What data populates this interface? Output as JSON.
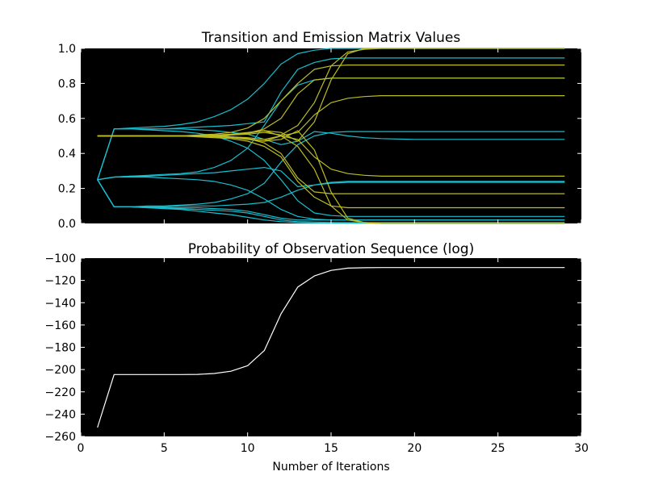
{
  "colors": {
    "plot_bg": "#000000",
    "cyan": "#17becf",
    "yellow": "#bcbd22",
    "white": "#ffffff"
  },
  "chart_data": [
    {
      "type": "line",
      "title": "Transition and Emission Matrix Values",
      "xlabel": "",
      "ylabel": "",
      "xlim": [
        0,
        30
      ],
      "ylim": [
        0.0,
        1.0
      ],
      "x_ticks_visible": false,
      "y_ticks": [
        "0.0",
        "0.2",
        "0.4",
        "0.6",
        "0.8",
        "1.0"
      ],
      "grid": false,
      "x": [
        1,
        2,
        3,
        4,
        5,
        6,
        7,
        8,
        9,
        10,
        11,
        12,
        13,
        14,
        15,
        16,
        17,
        18,
        19,
        20,
        21,
        22,
        23,
        24,
        25,
        26,
        27,
        28,
        29
      ],
      "series": [
        {
          "color": "cyan",
          "values": [
            0.25,
            0.54,
            0.545,
            0.55,
            0.555,
            0.565,
            0.58,
            0.61,
            0.65,
            0.71,
            0.8,
            0.91,
            0.97,
            0.99,
            1.0,
            1.0,
            1.0,
            1.0,
            1.0,
            1.0,
            1.0,
            1.0,
            1.0,
            1.0,
            1.0,
            1.0,
            1.0,
            1.0,
            1.0
          ]
        },
        {
          "color": "cyan",
          "values": [
            0.25,
            0.54,
            0.54,
            0.54,
            0.54,
            0.545,
            0.55,
            0.555,
            0.56,
            0.57,
            0.58,
            0.75,
            0.88,
            0.92,
            0.94,
            0.945,
            0.945,
            0.945,
            0.945,
            0.945,
            0.945,
            0.945,
            0.945,
            0.945,
            0.945,
            0.945,
            0.945,
            0.945,
            0.945
          ]
        },
        {
          "color": "cyan",
          "values": [
            0.25,
            0.54,
            0.54,
            0.54,
            0.54,
            0.54,
            0.535,
            0.53,
            0.52,
            0.51,
            0.48,
            0.45,
            0.47,
            0.525,
            0.515,
            0.5,
            0.49,
            0.485,
            0.482,
            0.48,
            0.48,
            0.48,
            0.48,
            0.48,
            0.48,
            0.48,
            0.48,
            0.48,
            0.48
          ]
        },
        {
          "color": "cyan",
          "values": [
            0.25,
            0.54,
            0.54,
            0.535,
            0.53,
            0.525,
            0.515,
            0.5,
            0.47,
            0.43,
            0.36,
            0.25,
            0.13,
            0.06,
            0.045,
            0.04,
            0.04,
            0.04,
            0.04,
            0.04,
            0.04,
            0.04,
            0.04,
            0.04,
            0.04,
            0.04,
            0.04,
            0.04,
            0.04
          ]
        },
        {
          "color": "cyan",
          "values": [
            0.25,
            0.265,
            0.27,
            0.275,
            0.28,
            0.285,
            0.295,
            0.32,
            0.36,
            0.43,
            0.56,
            0.7,
            0.79,
            0.82,
            0.83,
            0.83,
            0.83,
            0.83,
            0.83,
            0.83,
            0.83,
            0.83,
            0.83,
            0.83,
            0.83,
            0.83,
            0.83,
            0.83,
            0.83
          ]
        },
        {
          "color": "cyan",
          "values": [
            0.25,
            0.265,
            0.27,
            0.27,
            0.275,
            0.28,
            0.285,
            0.29,
            0.3,
            0.31,
            0.32,
            0.3,
            0.21,
            0.22,
            0.235,
            0.24,
            0.24,
            0.24,
            0.24,
            0.24,
            0.24,
            0.24,
            0.24,
            0.24,
            0.24,
            0.24,
            0.24,
            0.24,
            0.24
          ]
        },
        {
          "color": "cyan",
          "values": [
            0.25,
            0.265,
            0.265,
            0.265,
            0.26,
            0.255,
            0.25,
            0.24,
            0.22,
            0.19,
            0.14,
            0.08,
            0.04,
            0.025,
            0.02,
            0.02,
            0.02,
            0.02,
            0.02,
            0.02,
            0.02,
            0.02,
            0.02,
            0.02,
            0.02,
            0.02,
            0.02,
            0.02,
            0.02
          ]
        },
        {
          "color": "cyan",
          "values": [
            0.25,
            0.095,
            0.095,
            0.1,
            0.1,
            0.105,
            0.11,
            0.12,
            0.14,
            0.17,
            0.23,
            0.35,
            0.45,
            0.5,
            0.52,
            0.525,
            0.525,
            0.525,
            0.525,
            0.525,
            0.525,
            0.525,
            0.525,
            0.525,
            0.525,
            0.525,
            0.525,
            0.525,
            0.525
          ]
        },
        {
          "color": "cyan",
          "values": [
            0.25,
            0.095,
            0.095,
            0.095,
            0.095,
            0.1,
            0.1,
            0.1,
            0.105,
            0.11,
            0.12,
            0.15,
            0.19,
            0.22,
            0.23,
            0.235,
            0.235,
            0.235,
            0.235,
            0.235,
            0.235,
            0.235,
            0.235,
            0.235,
            0.235,
            0.235,
            0.235,
            0.235,
            0.235
          ]
        },
        {
          "color": "cyan",
          "values": [
            0.25,
            0.095,
            0.095,
            0.095,
            0.09,
            0.09,
            0.09,
            0.085,
            0.08,
            0.07,
            0.05,
            0.03,
            0.02,
            0.02,
            0.02,
            0.02,
            0.02,
            0.02,
            0.02,
            0.02,
            0.02,
            0.02,
            0.02,
            0.02,
            0.02,
            0.02,
            0.02,
            0.02,
            0.02
          ]
        },
        {
          "color": "cyan",
          "values": [
            0.25,
            0.095,
            0.095,
            0.09,
            0.09,
            0.085,
            0.08,
            0.075,
            0.07,
            0.06,
            0.04,
            0.02,
            0.01,
            0.008,
            0.006,
            0.005,
            0.005,
            0.005,
            0.005,
            0.005,
            0.005,
            0.005,
            0.005,
            0.005,
            0.005,
            0.005,
            0.005,
            0.005,
            0.005
          ]
        },
        {
          "color": "cyan",
          "values": [
            0.25,
            0.095,
            0.095,
            0.09,
            0.085,
            0.08,
            0.07,
            0.06,
            0.05,
            0.035,
            0.02,
            0.01,
            0.005,
            0.003,
            0.002,
            0.002,
            0.002,
            0.002,
            0.002,
            0.002,
            0.002,
            0.002,
            0.002,
            0.002,
            0.002,
            0.002,
            0.002,
            0.002,
            0.002
          ]
        },
        {
          "color": "yellow",
          "values": [
            0.5,
            0.5,
            0.5,
            0.5,
            0.5,
            0.5,
            0.505,
            0.51,
            0.52,
            0.545,
            0.6,
            0.7,
            0.8,
            0.88,
            0.9,
            0.905,
            0.905,
            0.905,
            0.905,
            0.905,
            0.905,
            0.905,
            0.905,
            0.905,
            0.905,
            0.905,
            0.905,
            0.905,
            0.905
          ]
        },
        {
          "color": "yellow",
          "values": [
            0.5,
            0.5,
            0.5,
            0.5,
            0.5,
            0.5,
            0.5,
            0.5,
            0.505,
            0.51,
            0.52,
            0.505,
            0.56,
            0.69,
            0.9,
            0.98,
            0.995,
            1.0,
            1.0,
            1.0,
            1.0,
            1.0,
            1.0,
            1.0,
            1.0,
            1.0,
            1.0,
            1.0,
            1.0
          ]
        },
        {
          "color": "yellow",
          "values": [
            0.5,
            0.5,
            0.5,
            0.5,
            0.5,
            0.5,
            0.5,
            0.505,
            0.51,
            0.52,
            0.53,
            0.52,
            0.47,
            0.58,
            0.82,
            0.97,
            1.0,
            1.0,
            1.0,
            1.0,
            1.0,
            1.0,
            1.0,
            1.0,
            1.0,
            1.0,
            1.0,
            1.0,
            1.0
          ]
        },
        {
          "color": "yellow",
          "values": [
            0.5,
            0.5,
            0.5,
            0.5,
            0.5,
            0.5,
            0.5,
            0.5,
            0.505,
            0.515,
            0.53,
            0.5,
            0.52,
            0.62,
            0.69,
            0.715,
            0.725,
            0.73,
            0.73,
            0.73,
            0.73,
            0.73,
            0.73,
            0.73,
            0.73,
            0.73,
            0.73,
            0.73,
            0.73
          ]
        },
        {
          "color": "yellow",
          "values": [
            0.5,
            0.5,
            0.5,
            0.5,
            0.5,
            0.5,
            0.5,
            0.5,
            0.505,
            0.515,
            0.54,
            0.6,
            0.74,
            0.82,
            0.83,
            0.83,
            0.83,
            0.83,
            0.83,
            0.83,
            0.83,
            0.83,
            0.83,
            0.83,
            0.83,
            0.83,
            0.83,
            0.83,
            0.83
          ]
        },
        {
          "color": "yellow",
          "values": [
            0.5,
            0.5,
            0.5,
            0.5,
            0.5,
            0.5,
            0.5,
            0.5,
            0.495,
            0.485,
            0.46,
            0.4,
            0.26,
            0.18,
            0.17,
            0.17,
            0.17,
            0.17,
            0.17,
            0.17,
            0.17,
            0.17,
            0.17,
            0.17,
            0.17,
            0.17,
            0.17,
            0.17,
            0.17
          ]
        },
        {
          "color": "yellow",
          "values": [
            0.5,
            0.5,
            0.5,
            0.5,
            0.5,
            0.5,
            0.5,
            0.5,
            0.495,
            0.49,
            0.48,
            0.5,
            0.44,
            0.31,
            0.1,
            0.02,
            0.005,
            0.0,
            0.0,
            0.0,
            0.0,
            0.0,
            0.0,
            0.0,
            0.0,
            0.0,
            0.0,
            0.0,
            0.0
          ]
        },
        {
          "color": "yellow",
          "values": [
            0.5,
            0.5,
            0.5,
            0.5,
            0.5,
            0.5,
            0.5,
            0.495,
            0.49,
            0.48,
            0.47,
            0.48,
            0.53,
            0.42,
            0.18,
            0.03,
            0.005,
            0.0,
            0.0,
            0.0,
            0.0,
            0.0,
            0.0,
            0.0,
            0.0,
            0.0,
            0.0,
            0.0,
            0.0
          ]
        },
        {
          "color": "yellow",
          "values": [
            0.5,
            0.5,
            0.5,
            0.5,
            0.5,
            0.5,
            0.5,
            0.5,
            0.495,
            0.485,
            0.47,
            0.5,
            0.48,
            0.38,
            0.31,
            0.285,
            0.275,
            0.27,
            0.27,
            0.27,
            0.27,
            0.27,
            0.27,
            0.27,
            0.27,
            0.27,
            0.27,
            0.27,
            0.27
          ]
        },
        {
          "color": "yellow",
          "values": [
            0.5,
            0.5,
            0.5,
            0.5,
            0.5,
            0.5,
            0.495,
            0.49,
            0.485,
            0.47,
            0.44,
            0.38,
            0.24,
            0.15,
            0.1,
            0.09,
            0.09,
            0.09,
            0.09,
            0.09,
            0.09,
            0.09,
            0.09,
            0.09,
            0.09,
            0.09,
            0.09,
            0.09,
            0.09
          ]
        }
      ]
    },
    {
      "type": "line",
      "title": "Probability of Observation Sequence (log)",
      "xlabel": "Number of Iterations",
      "ylabel": "",
      "xlim": [
        0,
        30
      ],
      "ylim": [
        -260,
        -100
      ],
      "x_ticks": [
        "0",
        "5",
        "10",
        "15",
        "20",
        "25",
        "30"
      ],
      "y_ticks": [
        "−260",
        "−240",
        "−220",
        "−200",
        "−180",
        "−160",
        "−140",
        "−120",
        "−100"
      ],
      "grid": false,
      "x": [
        1,
        2,
        3,
        4,
        5,
        6,
        7,
        8,
        9,
        10,
        11,
        12,
        13,
        14,
        15,
        16,
        17,
        18,
        19,
        20,
        21,
        22,
        23,
        24,
        25,
        26,
        27,
        28,
        29
      ],
      "series": [
        {
          "color": "white",
          "values": [
            -252,
            -204.5,
            -204.5,
            -204.5,
            -204.5,
            -204.5,
            -204.3,
            -203.5,
            -201.5,
            -196.5,
            -183,
            -150,
            -126,
            -116,
            -111,
            -109,
            -108.6,
            -108.5,
            -108.5,
            -108.5,
            -108.5,
            -108.5,
            -108.5,
            -108.5,
            -108.5,
            -108.5,
            -108.5,
            -108.5,
            -108.5
          ]
        }
      ]
    }
  ]
}
